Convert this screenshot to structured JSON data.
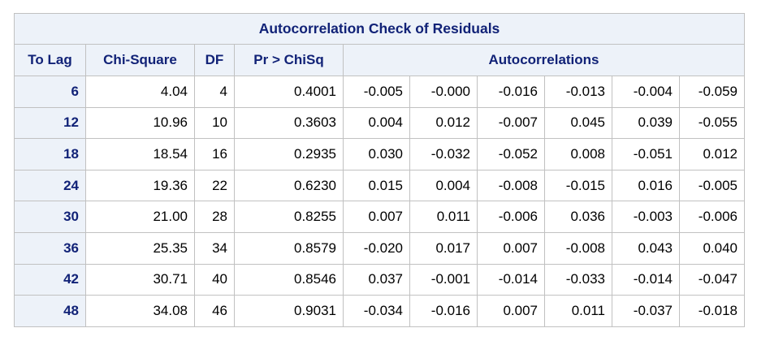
{
  "table": {
    "title": "Autocorrelation Check of Residuals",
    "headers": {
      "to_lag": "To Lag",
      "chi_square": "Chi-Square",
      "df": "DF",
      "pr_chisq": "Pr > ChiSq",
      "autocorrelations": "Autocorrelations"
    },
    "rows": [
      {
        "lag": "6",
        "chisq": "4.04",
        "df": "4",
        "p": "0.4001",
        "ac": [
          "-0.005",
          "-0.000",
          "-0.016",
          "-0.013",
          "-0.004",
          "-0.059"
        ]
      },
      {
        "lag": "12",
        "chisq": "10.96",
        "df": "10",
        "p": "0.3603",
        "ac": [
          "0.004",
          "0.012",
          "-0.007",
          "0.045",
          "0.039",
          "-0.055"
        ]
      },
      {
        "lag": "18",
        "chisq": "18.54",
        "df": "16",
        "p": "0.2935",
        "ac": [
          "0.030",
          "-0.032",
          "-0.052",
          "0.008",
          "-0.051",
          "0.012"
        ]
      },
      {
        "lag": "24",
        "chisq": "19.36",
        "df": "22",
        "p": "0.6230",
        "ac": [
          "0.015",
          "0.004",
          "-0.008",
          "-0.015",
          "0.016",
          "-0.005"
        ]
      },
      {
        "lag": "30",
        "chisq": "21.00",
        "df": "28",
        "p": "0.8255",
        "ac": [
          "0.007",
          "0.011",
          "-0.006",
          "0.036",
          "-0.003",
          "-0.006"
        ]
      },
      {
        "lag": "36",
        "chisq": "25.35",
        "df": "34",
        "p": "0.8579",
        "ac": [
          "-0.020",
          "0.017",
          "0.007",
          "-0.008",
          "0.043",
          "0.040"
        ]
      },
      {
        "lag": "42",
        "chisq": "30.71",
        "df": "40",
        "p": "0.8546",
        "ac": [
          "0.037",
          "-0.001",
          "-0.014",
          "-0.033",
          "-0.014",
          "-0.047"
        ]
      },
      {
        "lag": "48",
        "chisq": "34.08",
        "df": "46",
        "p": "0.9031",
        "ac": [
          "-0.034",
          "-0.016",
          "0.007",
          "0.011",
          "-0.037",
          "-0.018"
        ]
      }
    ]
  },
  "colors": {
    "header_bg": "#edf2f9",
    "header_text": "#112277",
    "border": "#c1c1c1"
  }
}
